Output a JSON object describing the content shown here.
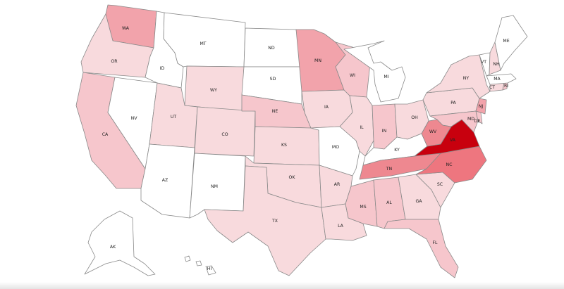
{
  "map": {
    "colors": {
      "none": "#ffffff",
      "low": "#f8dadd",
      "lowmid": "#f6c6cc",
      "mid": "#f2a3ab",
      "midhigh": "#ee8890",
      "high": "#ee767f",
      "max": "#c8000e"
    },
    "states": [
      {
        "abbr": "WA",
        "level": "mid"
      },
      {
        "abbr": "OR",
        "level": "low"
      },
      {
        "abbr": "CA",
        "level": "lowmid"
      },
      {
        "abbr": "NV",
        "level": "none"
      },
      {
        "abbr": "ID",
        "level": "none"
      },
      {
        "abbr": "MT",
        "level": "none"
      },
      {
        "abbr": "WY",
        "level": "low"
      },
      {
        "abbr": "UT",
        "level": "low"
      },
      {
        "abbr": "AZ",
        "level": "none"
      },
      {
        "abbr": "CO",
        "level": "low"
      },
      {
        "abbr": "NM",
        "level": "none"
      },
      {
        "abbr": "ND",
        "level": "none"
      },
      {
        "abbr": "SD",
        "level": "none"
      },
      {
        "abbr": "NE",
        "level": "lowmid"
      },
      {
        "abbr": "KS",
        "level": "low"
      },
      {
        "abbr": "OK",
        "level": "low"
      },
      {
        "abbr": "TX",
        "level": "low"
      },
      {
        "abbr": "MN",
        "level": "mid"
      },
      {
        "abbr": "IA",
        "level": "low"
      },
      {
        "abbr": "MO",
        "level": "none"
      },
      {
        "abbr": "AR",
        "level": "low"
      },
      {
        "abbr": "LA",
        "level": "low"
      },
      {
        "abbr": "WI",
        "level": "lowmid"
      },
      {
        "abbr": "IL",
        "level": "low"
      },
      {
        "abbr": "MI",
        "level": "none"
      },
      {
        "abbr": "IN",
        "level": "lowmid"
      },
      {
        "abbr": "OH",
        "level": "low"
      },
      {
        "abbr": "KY",
        "level": "none"
      },
      {
        "abbr": "TN",
        "level": "midhigh"
      },
      {
        "abbr": "MS",
        "level": "lowmid"
      },
      {
        "abbr": "AL",
        "level": "lowmid"
      },
      {
        "abbr": "GA",
        "level": "low"
      },
      {
        "abbr": "FL",
        "level": "lowmid"
      },
      {
        "abbr": "SC",
        "level": "low"
      },
      {
        "abbr": "NC",
        "level": "high"
      },
      {
        "abbr": "VA",
        "level": "max"
      },
      {
        "abbr": "WV",
        "level": "midhigh"
      },
      {
        "abbr": "PA",
        "level": "low"
      },
      {
        "abbr": "NY",
        "level": "low"
      },
      {
        "abbr": "MD",
        "level": "lowmid"
      },
      {
        "abbr": "DE",
        "level": "lowmid"
      },
      {
        "abbr": "NJ",
        "level": "mid"
      },
      {
        "abbr": "CT",
        "level": "low"
      },
      {
        "abbr": "RI",
        "level": "lowmid"
      },
      {
        "abbr": "MA",
        "level": "none"
      },
      {
        "abbr": "VT",
        "level": "none"
      },
      {
        "abbr": "NH",
        "level": "low"
      },
      {
        "abbr": "ME",
        "level": "none"
      },
      {
        "abbr": "AK",
        "level": "none"
      },
      {
        "abbr": "HI",
        "level": "none"
      }
    ]
  }
}
